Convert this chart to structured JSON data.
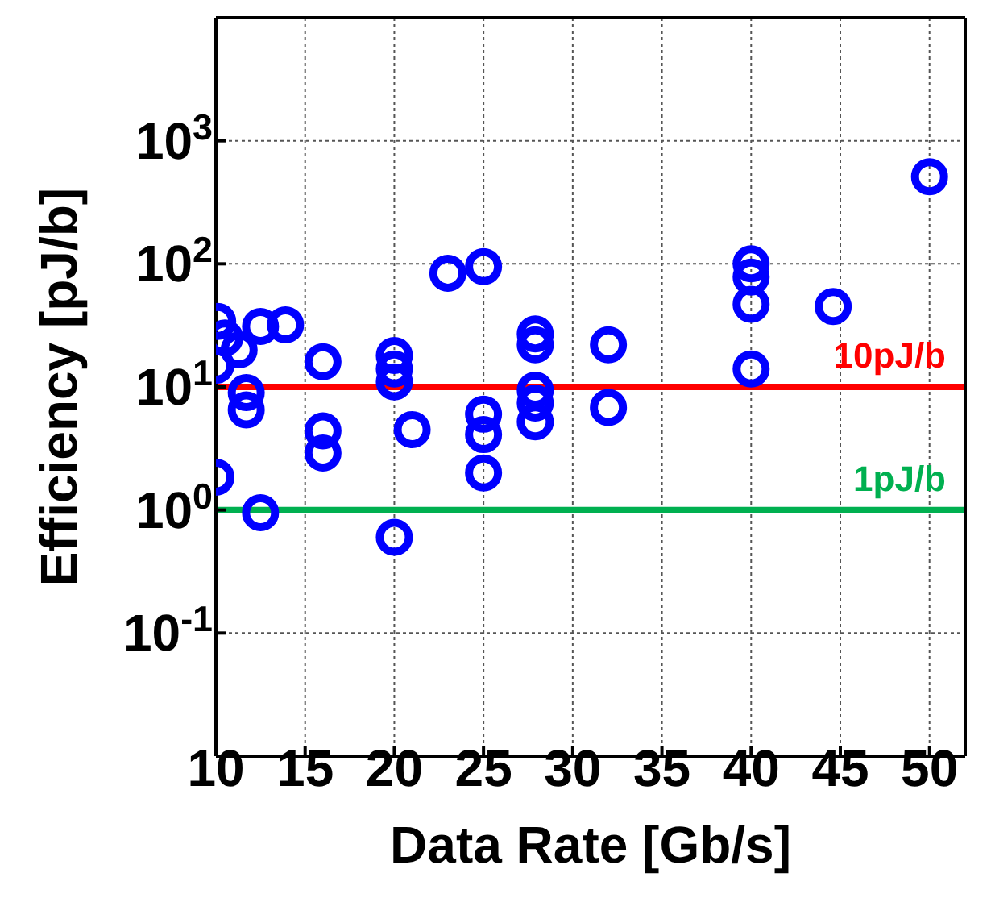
{
  "chart_data": {
    "type": "scatter",
    "xlabel": "Data Rate [Gb/s]",
    "ylabel": "Efficiency [pJ/b]",
    "x": [
      10.1,
      10.5,
      10,
      11.3,
      12.5,
      13.9,
      11.7,
      11.7,
      12.5,
      10,
      16,
      16,
      16,
      20,
      20,
      20,
      20,
      21,
      23,
      25,
      25,
      25,
      25,
      27.9,
      27.9,
      27.9,
      27.9,
      27.9,
      32,
      32,
      40,
      40,
      40,
      40,
      44.6,
      50
    ],
    "series": [
      {
        "color": "#0000ff",
        "values": [
          34,
          25,
          15,
          20,
          31,
          32,
          9,
          6.5,
          0.95,
          1.85,
          16,
          4.4,
          2.9,
          18,
          14,
          11,
          0.6,
          4.5,
          84,
          95,
          6,
          4.1,
          2,
          27,
          22,
          9.4,
          7.4,
          5.2,
          22,
          6.8,
          100,
          78,
          47,
          14,
          45,
          510
        ]
      }
    ],
    "marker": "circle",
    "log": "y",
    "xlim": [
      10,
      52
    ],
    "xticks": [
      10,
      15,
      20,
      25,
      30,
      35,
      40,
      45,
      50
    ],
    "ylim": [
      0.01,
      10000
    ],
    "yticks": [
      {
        "value": 0.1,
        "label": "10$^{-1}$"
      },
      {
        "value": 1,
        "label": "10$^{0}$"
      },
      {
        "value": 10,
        "label": "10$^{1}$"
      },
      {
        "value": 100,
        "label": "10$^{2}$"
      },
      {
        "value": 1000,
        "label": "10$^{3}$"
      }
    ],
    "grid": true,
    "ref_lines": [
      {
        "axis": "y",
        "value": 10,
        "label": "10pJ/b",
        "color": "#ff0000"
      },
      {
        "axis": "y",
        "value": 1,
        "label": "1pJ/b",
        "color": "#00b050"
      }
    ]
  }
}
